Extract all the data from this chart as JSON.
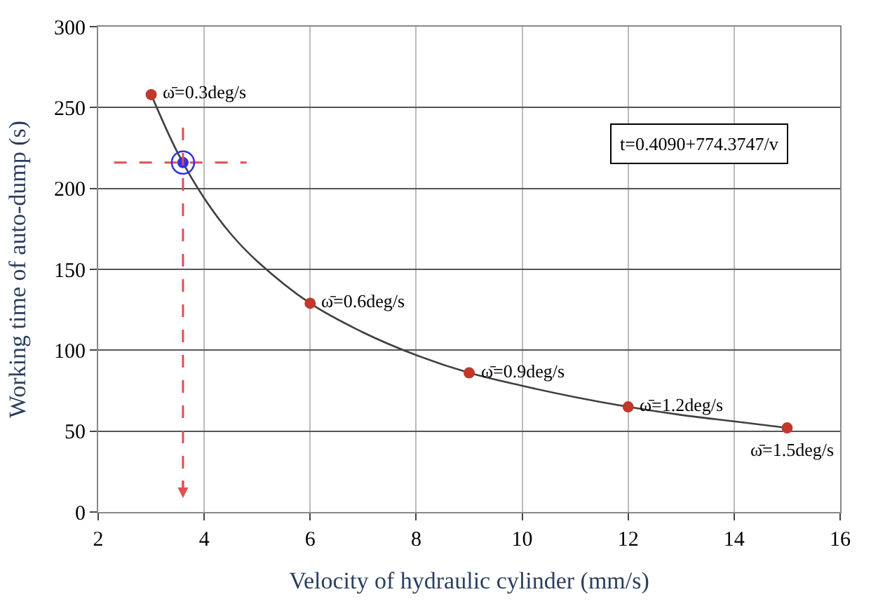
{
  "chart_data": {
    "type": "scatter",
    "xlabel": "Velocity of hydraulic cylinder (mm/s)",
    "ylabel": "Working time of auto-dump (s)",
    "xlim": [
      2,
      16
    ],
    "xticks": [
      2,
      4,
      6,
      8,
      10,
      12,
      14,
      16
    ],
    "ylim": [
      0,
      300
    ],
    "yticks": [
      0,
      50,
      100,
      150,
      200,
      250,
      300
    ],
    "grid": true,
    "series": [
      {
        "type": "line",
        "color": "#404040",
        "line_style": "solid",
        "marker": "none",
        "x": [
          3,
          3.5,
          4,
          4.5,
          5,
          6,
          7,
          8,
          9,
          10,
          11,
          12,
          13,
          14,
          15
        ],
        "values": [
          258,
          222,
          194,
          172,
          155,
          129,
          111,
          97,
          86,
          78,
          71,
          65,
          60,
          56,
          52
        ]
      },
      {
        "type": "line",
        "color": "#e05050",
        "line_style": "dashed",
        "marker": "none",
        "x": [
          2.3,
          4.8
        ],
        "values": [
          216,
          216
        ]
      },
      {
        "color": "#c0392b",
        "marker": "circle",
        "x": [
          3,
          6,
          9,
          12,
          15
        ],
        "values": [
          258,
          129,
          86,
          65,
          52
        ]
      },
      {
        "color": "#3333dd",
        "marker": "circle",
        "x": [
          3.6
        ],
        "values": [
          216
        ]
      }
    ],
    "annotations": [
      {
        "text": "ω̄=0.3deg/s",
        "x": 3,
        "y": 258
      },
      {
        "text": "ω̄=0.6deg/s",
        "x": 6,
        "y": 129
      },
      {
        "text": "ω̄=0.9deg/s",
        "x": 9,
        "y": 86
      },
      {
        "text": "ω̄=1.2deg/s",
        "x": 12,
        "y": 65
      },
      {
        "text": "ω̄=1.5deg/s",
        "x": 15,
        "y": 52
      },
      "t=0.4090+774.3747/v"
    ]
  }
}
